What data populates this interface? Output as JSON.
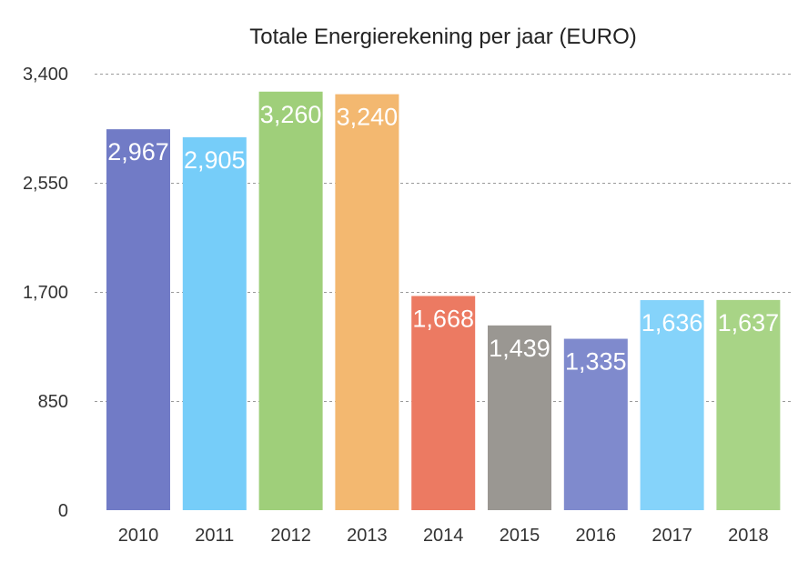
{
  "chart_data": {
    "type": "bar",
    "title": "Totale Energierekening per jaar (EURO)",
    "xlabel": "",
    "ylabel": "",
    "categories": [
      "2010",
      "2011",
      "2012",
      "2013",
      "2014",
      "2015",
      "2016",
      "2017",
      "2018"
    ],
    "values": [
      2967,
      2905,
      3260,
      3240,
      1668,
      1439,
      1335,
      1636,
      1637
    ],
    "data_labels": [
      "2,967",
      "2,905",
      "3,260",
      "3,240",
      "1,668",
      "1,439",
      "1,335",
      "1,636",
      "1,637"
    ],
    "colors": [
      "#717bc6",
      "#76cdf9",
      "#9fcf7a",
      "#f3b870",
      "#ec7a62",
      "#9a9792",
      "#7f8acd",
      "#85d3fa",
      "#a8d486"
    ],
    "ylim": [
      0,
      3400
    ],
    "yticks": [
      0,
      850,
      1700,
      2550,
      3400
    ],
    "ytick_labels": [
      "0",
      "850",
      "1,700",
      "2,550",
      "3,400"
    ],
    "grid": true,
    "legend": "none"
  }
}
